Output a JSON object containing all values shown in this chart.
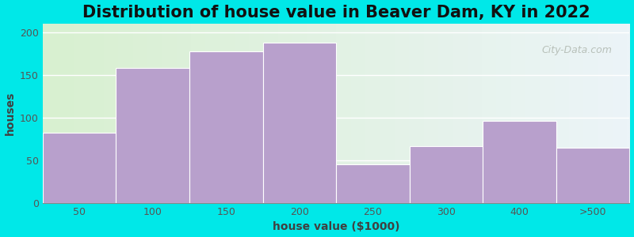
{
  "title": "Distribution of house value in Beaver Dam, KY in 2022",
  "xlabel": "house value ($1000)",
  "ylabel": "houses",
  "categories": [
    "50",
    "100",
    "150",
    "200",
    "250",
    "300",
    "400",
    ">500"
  ],
  "values": [
    82,
    158,
    178,
    188,
    45,
    67,
    96,
    65
  ],
  "bar_color": "#b8a0cc",
  "background_outer": "#00e8e8",
  "grid_color": "#ffffff",
  "ylim": [
    0,
    210
  ],
  "yticks": [
    0,
    50,
    100,
    150,
    200
  ],
  "title_fontsize": 15,
  "axis_label_fontsize": 10,
  "tick_fontsize": 9,
  "watermark_text": "City-Data.com",
  "watermark_color": "#b0b8b0",
  "bg_left_color": "#d8f0d0",
  "bg_right_color": "#e8f0f8",
  "bg_top_color": "#eaf5ea",
  "bg_bottom_color": "#f5faf5"
}
